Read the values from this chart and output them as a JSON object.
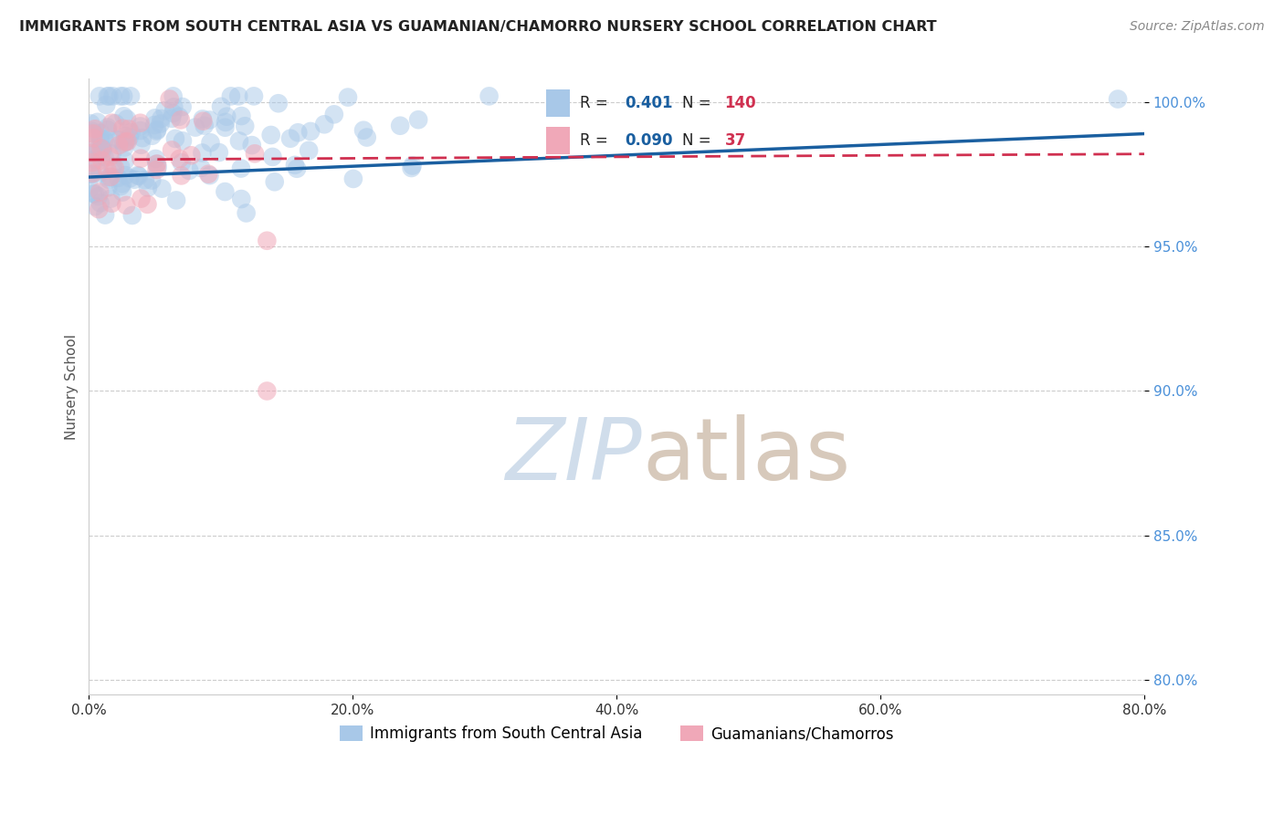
{
  "title": "IMMIGRANTS FROM SOUTH CENTRAL ASIA VS GUAMANIAN/CHAMORRO NURSERY SCHOOL CORRELATION CHART",
  "source": "Source: ZipAtlas.com",
  "xlabel_blue": "Immigrants from South Central Asia",
  "xlabel_pink": "Guamanians/Chamorros",
  "ylabel": "Nursery School",
  "R_blue": 0.401,
  "N_blue": 140,
  "R_pink": 0.09,
  "N_pink": 37,
  "color_blue": "#A8C8E8",
  "color_pink": "#F0A8B8",
  "line_blue": "#1A5FA0",
  "line_pink": "#D03050",
  "xlim": [
    0.0,
    0.8
  ],
  "ylim": [
    0.795,
    1.008
  ],
  "yticks": [
    0.8,
    0.85,
    0.9,
    0.95,
    1.0
  ],
  "xticks": [
    0.0,
    0.2,
    0.4,
    0.6,
    0.8
  ],
  "watermark_zip": "ZIP",
  "watermark_atlas": "atlas",
  "legend_R_color": "#1A5FA0",
  "legend_N_color": "#D03050",
  "yticklabel_color": "#4A90D9",
  "xticklabel_color": "#333333"
}
